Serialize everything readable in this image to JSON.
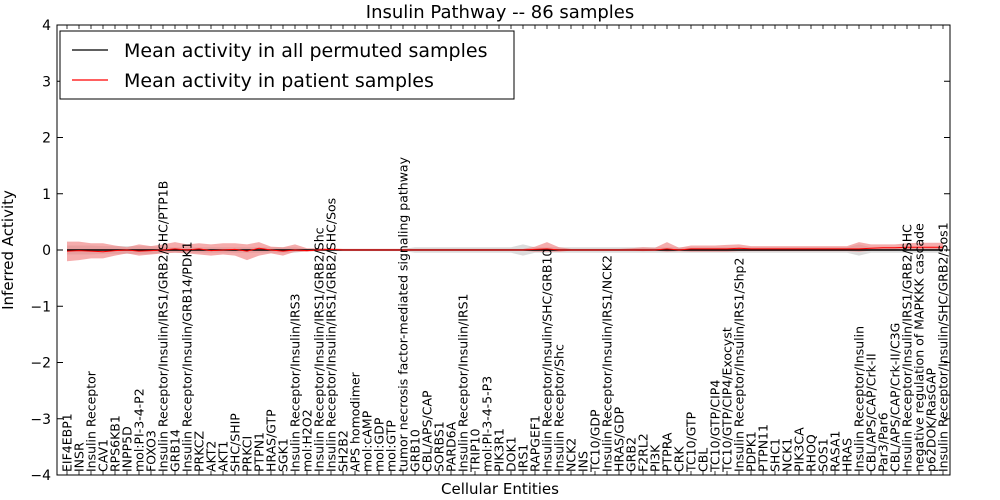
{
  "chart_data": {
    "type": "line",
    "title": "Insulin Pathway -- 86 samples",
    "xlabel": "Cellular Entities",
    "ylabel": "Inferred Activity",
    "ylim": [
      -4,
      4
    ],
    "yticks": [
      "4",
      "3",
      "2",
      "1",
      "0",
      "−1",
      "−2",
      "−3",
      "−4"
    ],
    "legend_position": "top-left",
    "colors": {
      "permuted": "#000000",
      "patient": "#ff0000",
      "patient_band": "#f08080",
      "permuted_band": "#b0b0b0"
    },
    "entities": [
      "EIF4EBP1",
      "INSR",
      "Insulin Receptor",
      "CAV1",
      "RPS6KB1",
      "INPP5D",
      "mol:PI-3-4-P2",
      "FOXO3",
      "Insulin Receptor/Insulin/IRS1/GRB2/SHC/PTP1B",
      "GRB14",
      "Insulin Receptor/Insulin/GRB14/PDK1",
      "PRKCZ",
      "AKT2",
      "AKT1",
      "SHC/SHIP",
      "PRKCI",
      "PTPN1",
      "HRAS/GTP",
      "SGK1",
      "Insulin Receptor/Insulin/IRS3",
      "mol:H2O2",
      "Insulin Receptor/Insulin/IRS1/GRB2/Shc",
      "Insulin Receptor/Insulin/IRS1/GRB2/SHC/Sos",
      "SH2B2",
      "APS homodimer",
      "mol:cAMP",
      "mol:GDP",
      "mol:GTP",
      "tumor necrosis factor-mediated signaling pathway",
      "GRB10",
      "CBL/APS/CAP",
      "SORBS1",
      "PARD6A",
      "Insulin Receptor/Insulin/IRS1",
      "TRIP10",
      "mol:PI-3-4-5-P3",
      "PIK3R1",
      "DOK1",
      "IRS1",
      "RAPGEF1",
      "Insulin Receptor/Insulin/SHC/GRB10",
      "Insulin Receptor/Shc",
      "NCK2",
      "INS",
      "TC10/GDP",
      "Insulin Receptor/Insulin/IRS1/NCK2",
      "HRAS/GDP",
      "GRB2",
      "F2RL2",
      "PI3K",
      "PTPRA",
      "CRK",
      "TC10/GTP",
      "CBL",
      "TC10/GTP/CIP4",
      "TC10/GTP/CIP4/Exocyst",
      "Insulin Receptor/Insulin/IRS1/Shp2",
      "PDPK1",
      "PTPN11",
      "SHC1",
      "NCK1",
      "PIK3CA",
      "RHOQ",
      "SOS1",
      "RASA1",
      "HRAS",
      "Insulin Receptor/Insulin",
      "CBL/APS/CAP/Crk-II",
      "Par3/Par6",
      "CBL/APS/CAP/Crk-II/C3G",
      "Insulin Receptor/Insulin/IRS1/GRB2/SHC",
      "negative regulation of MAPKKK cascade",
      "p62DOK/RasGAP",
      "Insulin Receptor/Insulin/SHC/GRB2/Sos1"
    ],
    "series": [
      {
        "name": "Mean activity in all permuted samples",
        "values": [
          0,
          0,
          0,
          0,
          0,
          0,
          0,
          0,
          0,
          0,
          0,
          0,
          0,
          0,
          0,
          0,
          0,
          0,
          0,
          0,
          0,
          0,
          0,
          0,
          0,
          0,
          0,
          0,
          0,
          0,
          0,
          0,
          0,
          0,
          0,
          0,
          0,
          0,
          0,
          0,
          0,
          0,
          0,
          0,
          0,
          0,
          0,
          0,
          0,
          0,
          0,
          0,
          0,
          0,
          0,
          0,
          0,
          0,
          0,
          0,
          0,
          0,
          0,
          0,
          0,
          0,
          0,
          0,
          0,
          0,
          0,
          0,
          0,
          0
        ],
        "band": {
          "lower": [
            -0.08,
            -0.08,
            -0.08,
            -0.07,
            -0.07,
            -0.07,
            -0.07,
            -0.07,
            -0.05,
            -0.05,
            -0.05,
            -0.05,
            -0.05,
            -0.05,
            -0.05,
            -0.05,
            -0.05,
            -0.05,
            -0.05,
            -0.05,
            -0.02,
            -0.02,
            -0.02,
            -0.02,
            -0.02,
            -0.02,
            -0.02,
            -0.02,
            -0.02,
            -0.05,
            -0.05,
            -0.05,
            -0.05,
            -0.05,
            -0.05,
            -0.05,
            -0.05,
            -0.05,
            -0.1,
            -0.05,
            -0.05,
            -0.05,
            -0.05,
            -0.05,
            -0.05,
            -0.05,
            -0.05,
            -0.05,
            -0.05,
            -0.05,
            -0.05,
            -0.05,
            -0.05,
            -0.05,
            -0.05,
            -0.05,
            -0.05,
            -0.05,
            -0.05,
            -0.05,
            -0.05,
            -0.05,
            -0.05,
            -0.05,
            -0.05,
            -0.05,
            -0.1,
            -0.05,
            -0.05,
            -0.05,
            -0.05,
            -0.05,
            -0.05,
            -0.05
          ],
          "upper": [
            0.08,
            0.08,
            0.08,
            0.07,
            0.07,
            0.07,
            0.07,
            0.07,
            0.05,
            0.05,
            0.05,
            0.05,
            0.05,
            0.05,
            0.05,
            0.05,
            0.05,
            0.05,
            0.05,
            0.05,
            0.02,
            0.02,
            0.02,
            0.02,
            0.02,
            0.02,
            0.02,
            0.02,
            0.02,
            0.05,
            0.05,
            0.05,
            0.05,
            0.05,
            0.05,
            0.05,
            0.05,
            0.05,
            0.1,
            0.05,
            0.05,
            0.05,
            0.05,
            0.05,
            0.05,
            0.05,
            0.05,
            0.05,
            0.05,
            0.05,
            0.05,
            0.05,
            0.05,
            0.05,
            0.05,
            0.05,
            0.05,
            0.05,
            0.05,
            0.05,
            0.05,
            0.05,
            0.05,
            0.05,
            0.05,
            0.05,
            0.1,
            0.05,
            0.05,
            0.05,
            0.05,
            0.05,
            0.05,
            0.05
          ]
        }
      },
      {
        "name": "Mean activity in patient samples",
        "values": [
          -0.02,
          -0.01,
          -0.02,
          -0.03,
          -0.01,
          0.0,
          -0.02,
          -0.01,
          0.0,
          0.02,
          0.0,
          0.02,
          -0.01,
          0.0,
          0.01,
          -0.02,
          0.03,
          0.0,
          -0.02,
          0.0,
          -0.01,
          0.0,
          0.01,
          0.0,
          0.0,
          0.0,
          0.0,
          0.0,
          0.0,
          0.0,
          0.0,
          0.0,
          0.0,
          0.0,
          0.0,
          0.0,
          0.0,
          0.0,
          0.0,
          0.01,
          0.02,
          0.0,
          0.0,
          0.0,
          0.0,
          0.0,
          0.0,
          0.0,
          0.0,
          0.0,
          0.02,
          0.0,
          0.02,
          0.02,
          0.02,
          0.02,
          0.03,
          0.02,
          0.02,
          0.02,
          0.02,
          0.02,
          0.02,
          0.02,
          0.02,
          0.02,
          0.02,
          0.03,
          0.04,
          0.04,
          0.05,
          0.05,
          0.05,
          0.05
        ],
        "band": {
          "lower": [
            -0.2,
            -0.18,
            -0.15,
            -0.15,
            -0.1,
            -0.06,
            -0.1,
            -0.08,
            -0.06,
            -0.05,
            -0.06,
            -0.08,
            -0.1,
            -0.08,
            -0.1,
            -0.18,
            -0.1,
            -0.06,
            -0.1,
            -0.03,
            -0.03,
            -0.01,
            -0.01,
            -0.01,
            -0.01,
            -0.01,
            -0.01,
            -0.01,
            -0.01,
            -0.01,
            -0.01,
            -0.01,
            -0.01,
            -0.01,
            -0.01,
            -0.01,
            -0.01,
            -0.01,
            -0.01,
            -0.03,
            -0.03,
            -0.03,
            -0.01,
            -0.01,
            -0.01,
            -0.01,
            -0.01,
            -0.01,
            -0.02,
            -0.01,
            -0.03,
            -0.02,
            -0.03,
            -0.03,
            -0.03,
            -0.03,
            -0.02,
            -0.02,
            -0.02,
            -0.02,
            -0.02,
            -0.02,
            -0.02,
            -0.02,
            -0.02,
            -0.02,
            -0.03,
            -0.01,
            -0.01,
            -0.01,
            0.0,
            0.0,
            0.0,
            0.0
          ],
          "upper": [
            0.15,
            0.15,
            0.12,
            0.12,
            0.08,
            0.05,
            0.1,
            0.07,
            0.1,
            0.14,
            0.1,
            0.12,
            0.1,
            0.12,
            0.12,
            0.1,
            0.14,
            0.06,
            0.05,
            0.1,
            0.03,
            0.03,
            0.03,
            0.02,
            0.02,
            0.02,
            0.02,
            0.02,
            0.02,
            0.02,
            0.02,
            0.02,
            0.02,
            0.02,
            0.02,
            0.02,
            0.02,
            0.02,
            0.02,
            0.06,
            0.14,
            0.05,
            0.02,
            0.02,
            0.02,
            0.02,
            0.02,
            0.03,
            0.05,
            0.04,
            0.14,
            0.04,
            0.08,
            0.08,
            0.08,
            0.09,
            0.1,
            0.07,
            0.07,
            0.07,
            0.07,
            0.07,
            0.07,
            0.07,
            0.07,
            0.07,
            0.14,
            0.1,
            0.1,
            0.1,
            0.12,
            0.13,
            0.13,
            0.13
          ]
        }
      }
    ]
  }
}
